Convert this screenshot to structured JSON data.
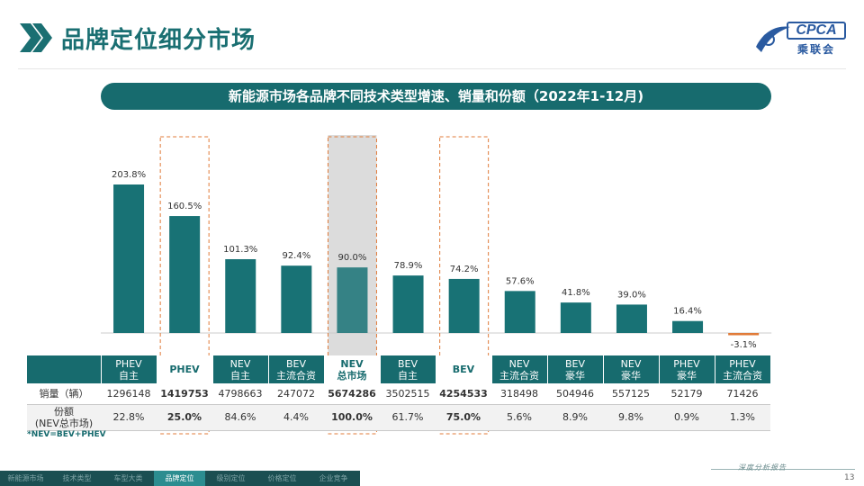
{
  "header": {
    "title": "品牌定位细分市场"
  },
  "logo": {
    "text": "CPCA",
    "cn": "乘联会"
  },
  "chart_title": "新能源市场各品牌不同技术类型增速、销量和份额（2022年1-12月)",
  "chart_data": {
    "type": "bar",
    "title": "新能源市场各品牌不同技术类型增速、销量和份额（2022年1-12月)",
    "categories": [
      "PHEV自主",
      "PHEV",
      "NEV自主",
      "BEV主流合资",
      "NEV总市场",
      "BEV自主",
      "BEV",
      "NEV主流合资",
      "BEV豪华",
      "NEV豪华",
      "PHEV豪华",
      "PHEV主流合资"
    ],
    "values": [
      203.8,
      160.5,
      101.3,
      92.4,
      90.0,
      78.9,
      74.2,
      57.6,
      41.8,
      39.0,
      16.4,
      -3.1
    ],
    "value_labels": [
      "203.8%",
      "160.5%",
      "101.3%",
      "92.4%",
      "90.0%",
      "78.9%",
      "74.2%",
      "57.6%",
      "41.8%",
      "39.0%",
      "16.4%",
      "-3.1%"
    ],
    "highlighted": [
      1,
      4,
      6
    ],
    "bar_color": "#187275",
    "negative_color": "#e07b39",
    "ylim": [
      -10,
      230
    ]
  },
  "table": {
    "headers": [
      [
        "PHEV",
        "自主"
      ],
      [
        "PHEV",
        ""
      ],
      [
        "NEV",
        "自主"
      ],
      [
        "BEV",
        "主流合资"
      ],
      [
        "NEV",
        "总市场"
      ],
      [
        "BEV",
        "自主"
      ],
      [
        "BEV",
        ""
      ],
      [
        "NEV",
        "主流合资"
      ],
      [
        "BEV",
        "豪华"
      ],
      [
        "NEV",
        "豪华"
      ],
      [
        "PHEV",
        "豪华"
      ],
      [
        "PHEV",
        "主流合资"
      ]
    ],
    "row1_label": "销量（辆）",
    "sales": [
      "1296148",
      "1419753",
      "4798663",
      "247072",
      "5674286",
      "3502515",
      "4254533",
      "318498",
      "504946",
      "557125",
      "52179",
      "71426"
    ],
    "row2_label_1": "份额",
    "row2_label_2": "(NEV总市场)",
    "share": [
      "22.8%",
      "25.0%",
      "84.6%",
      "4.4%",
      "100.0%",
      "61.7%",
      "75.0%",
      "5.6%",
      "8.9%",
      "9.8%",
      "0.9%",
      "1.3%"
    ]
  },
  "footnote": "*NEV=BEV+PHEV",
  "nav": [
    {
      "label": "新能源市场",
      "active": false
    },
    {
      "label": "技术类型",
      "active": false
    },
    {
      "label": "车型大类",
      "active": false
    },
    {
      "label": "品牌定位",
      "active": true
    },
    {
      "label": "级别定位",
      "active": false
    },
    {
      "label": "价格定位",
      "active": false
    },
    {
      "label": "企业竞争",
      "active": false
    }
  ],
  "footer_text": "深度分析报告",
  "page_number": "13"
}
